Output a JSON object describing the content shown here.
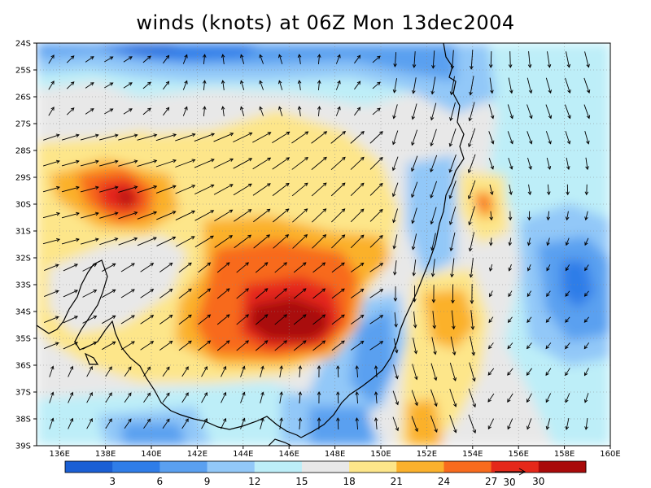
{
  "title": "winds (knots) at 06Z Mon 13dec2004",
  "lat_labels": [
    "24S",
    "25S",
    "26S",
    "27S",
    "28S",
    "29S",
    "30S",
    "31S",
    "32S",
    "33S",
    "34S",
    "35S",
    "36S",
    "37S",
    "38S",
    "39S"
  ],
  "lon_labels": [
    "136E",
    "138E",
    "140E",
    "142E",
    "144E",
    "146E",
    "148E",
    "150E",
    "152E",
    "154E",
    "156E",
    "158E",
    "160E"
  ],
  "colorbar": {
    "colors": [
      "#1a5fd4",
      "#2f7de8",
      "#5aa0f0",
      "#92c8f8",
      "#bdeef8",
      "#e8e8e8",
      "#fde68a",
      "#fbb12c",
      "#f86b1d",
      "#e5281a",
      "#a90a0a"
    ],
    "labels": [
      "3",
      "6",
      "9",
      "12",
      "15",
      "18",
      "21",
      "24",
      "27",
      "30"
    ]
  },
  "vector_legend": {
    "label": "30"
  },
  "colors": {
    "coast": "#000000",
    "arrow": "#000000",
    "grid": "#888888"
  }
}
